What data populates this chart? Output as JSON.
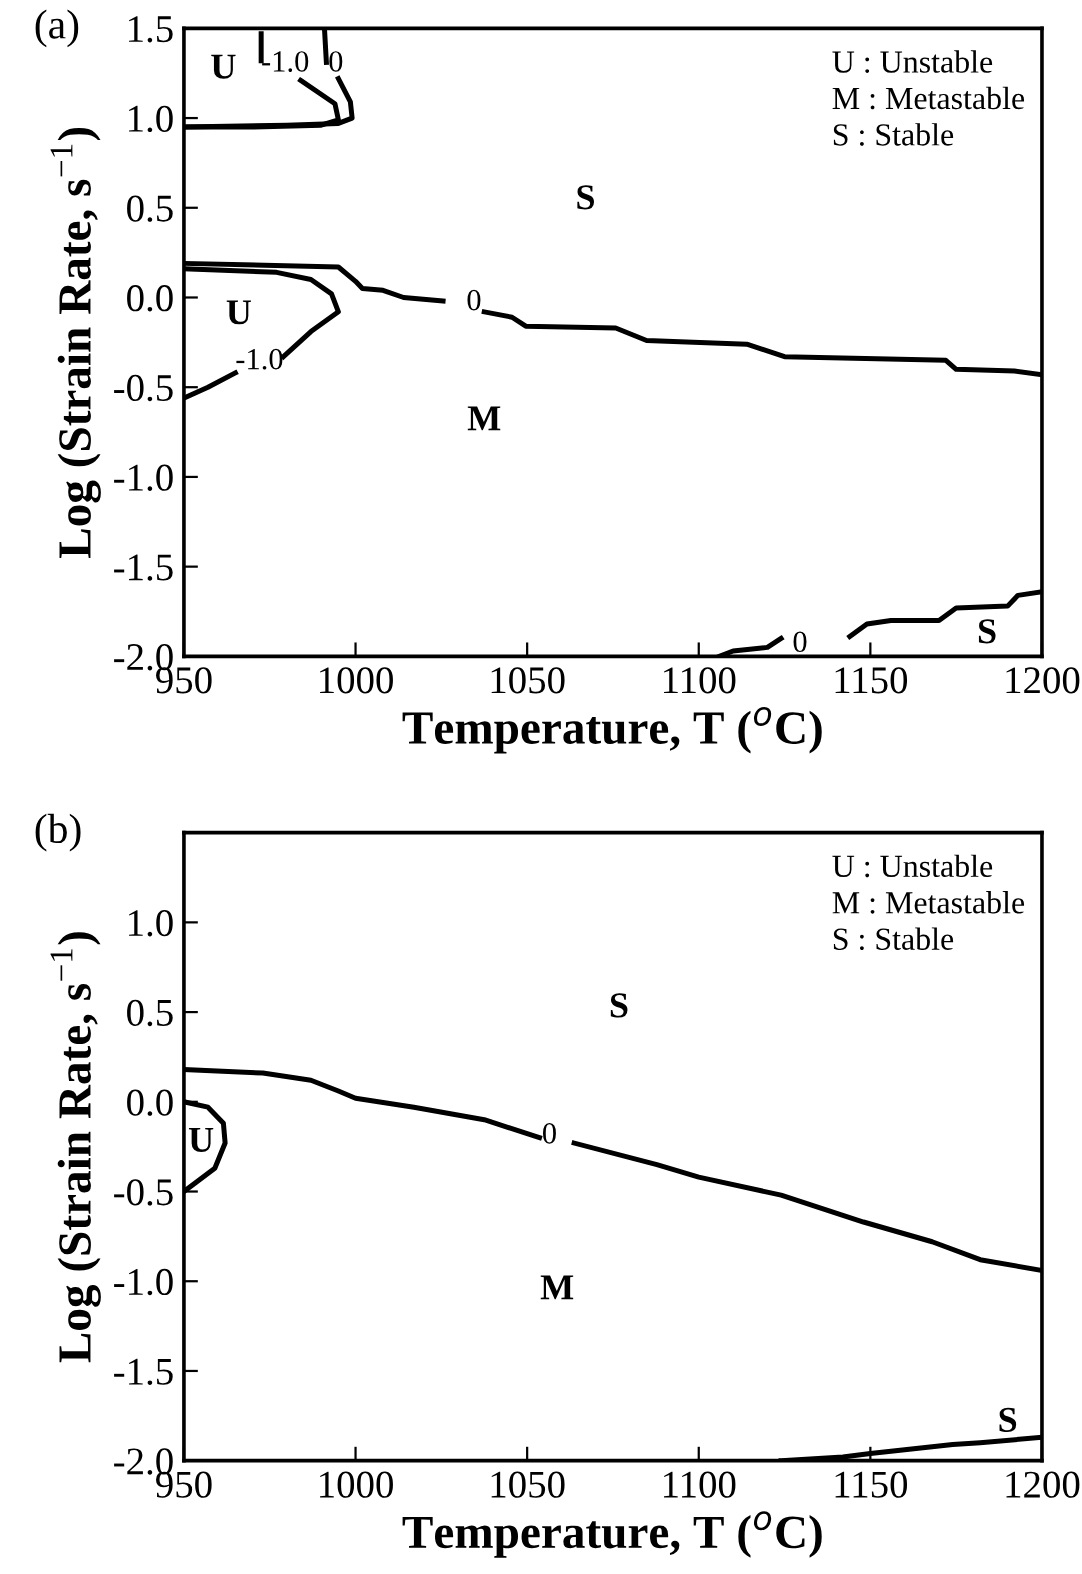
{
  "chart_data": [
    {
      "type": "line",
      "title": "(a)",
      "xlabel": "Temperature, T ($^{o}$C)",
      "ylabel": "Log (Strain Rate, s$^{−1}$)",
      "xlim": [
        950,
        1200
      ],
      "ylim": [
        -2.0,
        1.5
      ],
      "xticks": [
        950,
        1000,
        1050,
        1100,
        1150,
        1200
      ],
      "yticks": [
        {
          "value": -2,
          "label": "-2.0"
        },
        -1.5,
        {
          "value": -1,
          "label": "-1.0"
        },
        -0.5,
        {
          "value": 0,
          "label": "0.0"
        },
        0.5,
        {
          "value": 1,
          "label": "1.0"
        },
        1.5
      ],
      "grid": false,
      "legend": false,
      "marker": "none",
      "line_style": "solid",
      "series": [
        {
          "color": "#000000",
          "x": [
            972.5,
            972.5,
            978,
            984,
            994,
            995,
            990,
            970,
            950
          ],
          "values": [
            1.47,
            1.32,
            null,
            1.21,
            1.08,
            0.99,
            0.96,
            0.95,
            0.95
          ]
        },
        {
          "color": "#000000",
          "x": [
            991,
            991.5,
            993,
            995,
            998.5,
            999,
            995,
            980,
            950
          ],
          "values": [
            1.48,
            1.31,
            null,
            1.22,
            1.09,
            1.0,
            0.97,
            0.96,
            0.95
          ]
        },
        {
          "color": "#000000",
          "x": [
            950,
            977,
            987,
            993,
            995,
            987,
            979,
            972,
            965,
            957,
            950
          ],
          "values": [
            0.16,
            0.14,
            0.1,
            0.02,
            -0.08,
            -0.19,
            -0.33,
            null,
            -0.42,
            -0.5,
            -0.56
          ]
        },
        {
          "color": "#000000",
          "x": [
            950,
            995,
            1000,
            1002,
            1008,
            1014,
            1025.5,
            1034.5,
            1037.5,
            1045.6,
            1049.6,
            1075.8,
            1084.8,
            1114,
            1125,
            1172,
            1175,
            1192,
            1200
          ],
          "values": [
            0.19,
            0.17,
            0.09,
            0.05,
            0.04,
            0.0,
            -0.02,
            null,
            -0.08,
            -0.11,
            -0.16,
            -0.17,
            -0.24,
            -0.26,
            -0.33,
            -0.35,
            -0.4,
            -0.41,
            -0.43
          ]
        },
        {
          "color": "#000000",
          "x": [
            1106,
            1110,
            1120,
            1124,
            1129.5,
            1144,
            1149,
            1156,
            1170,
            1175,
            1190,
            1193,
            1200
          ],
          "values": [
            -2.0,
            -1.97,
            -1.95,
            -1.9,
            null,
            -1.89,
            -1.82,
            -1.8,
            -1.8,
            -1.73,
            -1.72,
            -1.66,
            -1.64
          ]
        }
      ],
      "annotations": [
        "U : Unstable",
        "M : Metastable",
        "S : Stable",
        "U",
        "S",
        "U",
        "M",
        "S",
        "-1.0",
        "0",
        "-1.0",
        "0",
        "0"
      ]
    },
    {
      "type": "line",
      "title": "(b)",
      "xlabel": "Temperature, T ($^{o}$C)",
      "ylabel": "Log (Strain Rate, s$^{−1}$)",
      "xlim": [
        950,
        1200
      ],
      "ylim": [
        -2.0,
        1.5
      ],
      "xticks": [
        950,
        1000,
        1050,
        1100,
        1150,
        1200
      ],
      "yticks": [
        {
          "value": -2,
          "label": "-2.0"
        },
        -1.5,
        {
          "value": -1,
          "label": "-1.0"
        },
        -0.5,
        {
          "value": 0,
          "label": "0.0"
        },
        0.5,
        {
          "value": 1,
          "label": "1.0"
        }
      ],
      "grid": false,
      "legend": false,
      "marker": "none",
      "line_style": "solid",
      "series": [
        {
          "color": "#000000",
          "x": [
            950,
            973,
            987,
            995,
            1000,
            1017,
            1037.5,
            1053.6,
            1056.6,
            1063.7,
            1087.8,
            1100,
            1124,
            1148,
            1168,
            1182,
            1200
          ],
          "values": [
            0.18,
            0.16,
            0.12,
            0.06,
            0.02,
            -0.03,
            -0.1,
            -0.2,
            null,
            -0.23,
            -0.35,
            -0.42,
            -0.52,
            -0.67,
            -0.78,
            -0.88,
            -0.94
          ]
        },
        {
          "color": "#000000",
          "x": [
            950,
            957,
            961.5,
            962,
            959,
            950
          ],
          "values": [
            0.0,
            -0.03,
            -0.12,
            -0.23,
            -0.37,
            -0.5
          ]
        },
        {
          "color": "#000000",
          "x": [
            1124,
            1142,
            1150,
            1174,
            1182,
            1200
          ],
          "values": [
            -2.0,
            -1.98,
            -1.96,
            -1.91,
            -1.9,
            -1.87
          ]
        }
      ],
      "annotations": [
        "U : Unstable",
        "M : Metastable",
        "S : Stable",
        "U",
        "S",
        "M",
        "S",
        "0"
      ]
    }
  ]
}
